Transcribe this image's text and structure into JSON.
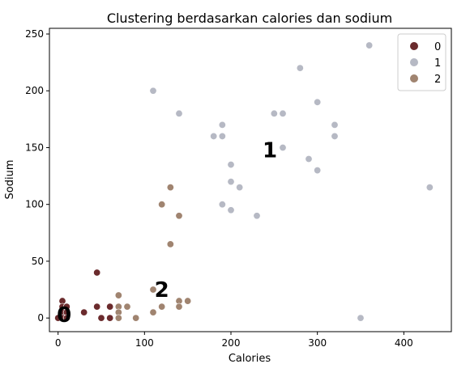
{
  "chart_data": {
    "type": "scatter",
    "title": "Clustering berdasarkan calories dan sodium",
    "xlabel": "Calories",
    "ylabel": "Sodium",
    "xlim": [
      -10,
      455
    ],
    "ylim": [
      -12,
      255
    ],
    "xticks": [
      0,
      100,
      200,
      300,
      400
    ],
    "yticks": [
      0,
      50,
      100,
      150,
      200,
      250
    ],
    "grid": false,
    "legend": "top-right",
    "series": [
      {
        "name": "0",
        "color": "#6b2b2d",
        "points": [
          [
            0,
            0
          ],
          [
            5,
            15
          ],
          [
            5,
            10
          ],
          [
            10,
            10
          ],
          [
            5,
            5
          ],
          [
            10,
            5
          ],
          [
            5,
            0
          ],
          [
            10,
            0
          ],
          [
            30,
            5
          ],
          [
            45,
            40
          ],
          [
            45,
            10
          ],
          [
            50,
            0
          ],
          [
            60,
            10
          ],
          [
            60,
            0
          ]
        ]
      },
      {
        "name": "1",
        "color": "#b6b9c4",
        "points": [
          [
            110,
            200
          ],
          [
            140,
            180
          ],
          [
            180,
            160
          ],
          [
            190,
            170
          ],
          [
            190,
            160
          ],
          [
            190,
            100
          ],
          [
            200,
            135
          ],
          [
            200,
            120
          ],
          [
            200,
            95
          ],
          [
            210,
            115
          ],
          [
            230,
            90
          ],
          [
            250,
            180
          ],
          [
            260,
            180
          ],
          [
            260,
            150
          ],
          [
            280,
            220
          ],
          [
            290,
            140
          ],
          [
            300,
            190
          ],
          [
            300,
            130
          ],
          [
            320,
            170
          ],
          [
            320,
            160
          ],
          [
            350,
            0
          ],
          [
            360,
            240
          ],
          [
            430,
            115
          ]
        ]
      },
      {
        "name": "2",
        "color": "#a08470",
        "points": [
          [
            70,
            20
          ],
          [
            70,
            10
          ],
          [
            70,
            5
          ],
          [
            70,
            0
          ],
          [
            80,
            10
          ],
          [
            90,
            0
          ],
          [
            110,
            25
          ],
          [
            110,
            5
          ],
          [
            120,
            100
          ],
          [
            120,
            10
          ],
          [
            130,
            115
          ],
          [
            130,
            65
          ],
          [
            140,
            90
          ],
          [
            140,
            15
          ],
          [
            140,
            10
          ],
          [
            150,
            15
          ]
        ]
      }
    ],
    "annotations": [
      {
        "text": "0",
        "x": 7,
        "y": 3
      },
      {
        "text": "1",
        "x": 245,
        "y": 148
      },
      {
        "text": "2",
        "x": 120,
        "y": 25
      }
    ]
  }
}
